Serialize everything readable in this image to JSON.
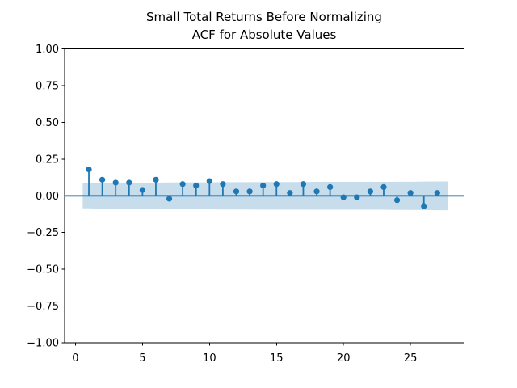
{
  "title": {
    "line1": "Small Total Returns Before Normalizing",
    "line2": "ACF for Absolute Values"
  },
  "chart_data": {
    "type": "stem",
    "title": "Small Total Returns Before Normalizing\nACF for Absolute Values",
    "xlabel": "",
    "ylabel": "",
    "lags": [
      1,
      2,
      3,
      4,
      5,
      6,
      7,
      8,
      9,
      10,
      11,
      12,
      13,
      14,
      15,
      16,
      17,
      18,
      19,
      20,
      21,
      22,
      23,
      24,
      25,
      26,
      27
    ],
    "acf_values": [
      0.18,
      0.11,
      0.09,
      0.09,
      0.04,
      0.11,
      -0.02,
      0.08,
      0.07,
      0.1,
      0.08,
      0.03,
      0.03,
      0.07,
      0.08,
      0.02,
      0.08,
      0.03,
      0.06,
      -0.01,
      -0.01,
      0.03,
      0.06,
      -0.03,
      0.02,
      -0.07,
      0.02
    ],
    "confidence_band": {
      "symmetric": true,
      "start_lag": 0.54,
      "end_lag": 27.8,
      "ci_upper": [
        0.085,
        0.088,
        0.089,
        0.09,
        0.09,
        0.09,
        0.091,
        0.091,
        0.092,
        0.092,
        0.093,
        0.093,
        0.093,
        0.094,
        0.094,
        0.094,
        0.094,
        0.095,
        0.095,
        0.095,
        0.095,
        0.095,
        0.095,
        0.096,
        0.096,
        0.097,
        0.098
      ]
    },
    "zero_line": 0,
    "xlim": [
      -0.81,
      29.0
    ],
    "ylim": [
      -1.0,
      1.0
    ],
    "xticks": {
      "values": [
        0,
        5,
        10,
        15,
        20,
        25
      ],
      "labels": [
        "0",
        "5",
        "10",
        "15",
        "20",
        "25"
      ]
    },
    "yticks": {
      "values": [
        1.0,
        0.75,
        0.5,
        0.25,
        0.0,
        -0.25,
        -0.5,
        -0.75,
        -1.0
      ],
      "labels": [
        "1.00",
        "0.75",
        "0.50",
        "0.25",
        "0.00",
        "−0.25",
        "−0.50",
        "−0.75",
        "−1.00"
      ]
    },
    "grid": false,
    "colors": {
      "series": "#1f77b4",
      "band_fill": "#1f77b4",
      "band_opacity": 0.25,
      "axis": "#000000",
      "background": "#ffffff"
    }
  }
}
